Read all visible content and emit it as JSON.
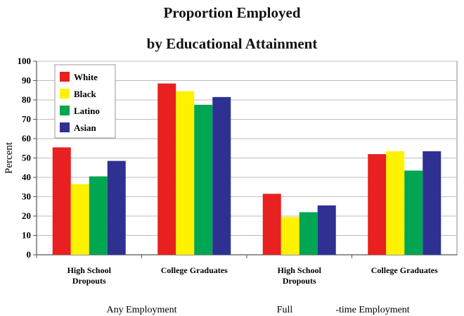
{
  "chart_data": {
    "type": "bar",
    "title": "Proportion Employed",
    "subtitle": "by Educational Attainment",
    "ylabel": "Percent",
    "ylim": [
      0,
      100
    ],
    "yticks": [
      0,
      10,
      20,
      30,
      40,
      50,
      60,
      70,
      80,
      90,
      100
    ],
    "grid": true,
    "legend_position": "top-left",
    "categories": [
      [
        "High School",
        "Dropouts"
      ],
      [
        "College Graduates"
      ],
      [
        "High School",
        "Dropouts"
      ],
      [
        "College Graduates"
      ]
    ],
    "groups": [
      "Any Employment",
      "Full",
      "-time Employment"
    ],
    "series": [
      {
        "name": "White",
        "color": "#e8201f",
        "values": [
          55.5,
          88.5,
          31.5,
          52
        ]
      },
      {
        "name": "Black",
        "color": "#fff200",
        "values": [
          36.5,
          84.5,
          19.5,
          53.5
        ]
      },
      {
        "name": "Latino",
        "color": "#00a651",
        "values": [
          40.5,
          77.5,
          22,
          43.5
        ]
      },
      {
        "name": "Asian",
        "color": "#2e3192",
        "values": [
          48.5,
          81.5,
          25.5,
          53.5
        ]
      }
    ]
  }
}
